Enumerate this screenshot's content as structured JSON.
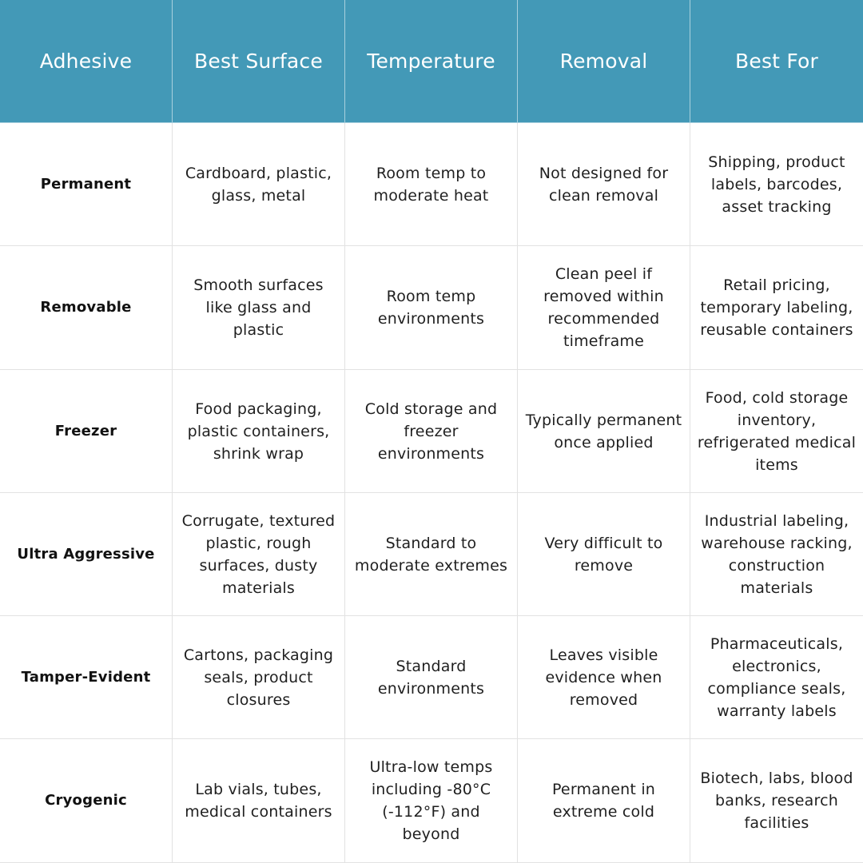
{
  "table": {
    "headers": [
      "Adhesive",
      "Best Surface",
      "Temperature",
      "Removal",
      "Best For"
    ],
    "rows": [
      {
        "adhesive": "Permanent",
        "best_surface": "Cardboard, plastic, glass, metal",
        "temperature": "Room temp to moderate heat",
        "removal": "Not designed for clean removal",
        "best_for": "Shipping, product labels, barcodes, asset tracking"
      },
      {
        "adhesive": "Removable",
        "best_surface": "Smooth surfaces like glass and plastic",
        "temperature": "Room temp environments",
        "removal": "Clean peel if removed within recommended timeframe",
        "best_for": "Retail pricing, temporary labeling, reusable containers"
      },
      {
        "adhesive": "Freezer",
        "best_surface": "Food packaging, plastic containers, shrink wrap",
        "temperature": "Cold storage and freezer environments",
        "removal": "Typically permanent once applied",
        "best_for": "Food, cold storage inventory, refrigerated medical items"
      },
      {
        "adhesive": "Ultra Aggressive",
        "best_surface": "Corrugate, textured plastic, rough surfaces, dusty materials",
        "temperature": "Standard to moderate extremes",
        "removal": "Very difficult to remove",
        "best_for": "Industrial labeling, warehouse racking, construction materials"
      },
      {
        "adhesive": "Tamper-Evident",
        "best_surface": "Cartons, packaging seals, product closures",
        "temperature": "Standard environments",
        "removal": "Leaves visible evidence when removed",
        "best_for": "Pharmaceuticals, electronics, compliance seals, warranty labels"
      },
      {
        "adhesive": "Cryogenic",
        "best_surface": "Lab vials, tubes, medical containers",
        "temperature": "Ultra-low temps including -80°C (-112°F) and beyond",
        "removal": "Permanent in extreme cold",
        "best_for": "Biotech, labs, blood banks, research facilities"
      }
    ]
  },
  "colors": {
    "header_background": "#4399b7",
    "header_text": "#ffffff",
    "grid_lines": "#e2e2e2",
    "body_text": "#1f1f1f"
  }
}
